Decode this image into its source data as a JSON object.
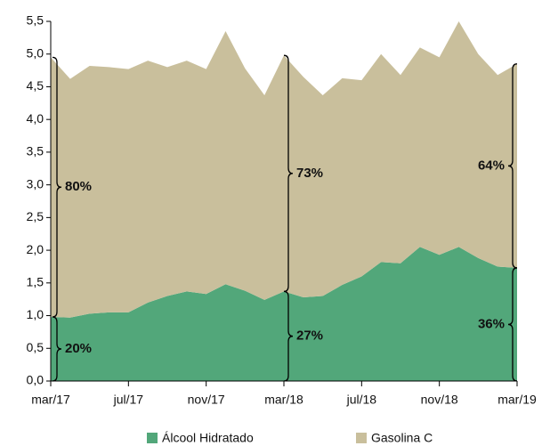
{
  "chart_data": {
    "type": "stacked_area",
    "categories": [
      "mar/17",
      null,
      null,
      null,
      "jul/17",
      null,
      null,
      null,
      "nov/17",
      null,
      null,
      null,
      "mar/18",
      null,
      null,
      null,
      "jul/18",
      null,
      null,
      null,
      "nov/18",
      null,
      null,
      null,
      "mar/19"
    ],
    "series": [
      {
        "name": "Álcool Hidratado",
        "color": "#52a77a",
        "values": [
          0.98,
          0.97,
          1.03,
          1.05,
          1.05,
          1.2,
          1.3,
          1.37,
          1.33,
          1.48,
          1.38,
          1.24,
          1.37,
          1.28,
          1.3,
          1.47,
          1.6,
          1.82,
          1.8,
          2.05,
          1.93,
          2.05,
          1.88,
          1.75,
          1.73
        ]
      },
      {
        "name": "Gasolina C",
        "color": "#c9bf9c",
        "values": [
          3.97,
          3.65,
          3.79,
          3.75,
          3.72,
          3.7,
          3.5,
          3.53,
          3.44,
          3.87,
          3.4,
          3.13,
          3.61,
          3.37,
          3.07,
          3.16,
          3.0,
          3.18,
          2.88,
          3.05,
          3.02,
          3.45,
          3.12,
          2.93,
          3.12
        ]
      }
    ],
    "ylim": [
      0,
      5.5
    ],
    "yticks": [
      {
        "value": 0,
        "label": "0,0"
      },
      {
        "value": 0.5,
        "label": "0,5"
      },
      {
        "value": 1,
        "label": "1,0"
      },
      {
        "value": 1.5,
        "label": "1,5"
      },
      {
        "value": 2,
        "label": "2,0"
      },
      {
        "value": 2.5,
        "label": "2,5"
      },
      {
        "value": 3,
        "label": "3,0"
      },
      {
        "value": 3.5,
        "label": "3,5"
      },
      {
        "value": 4,
        "label": "4,0"
      },
      {
        "value": 4.5,
        "label": "4,5"
      },
      {
        "value": 5,
        "label": "5,0"
      },
      {
        "value": 5.5,
        "label": "5,5"
      }
    ],
    "annotations": [
      "80%",
      "20%",
      "73%",
      "27%",
      "64%",
      "36%"
    ],
    "legend": "bottom"
  }
}
